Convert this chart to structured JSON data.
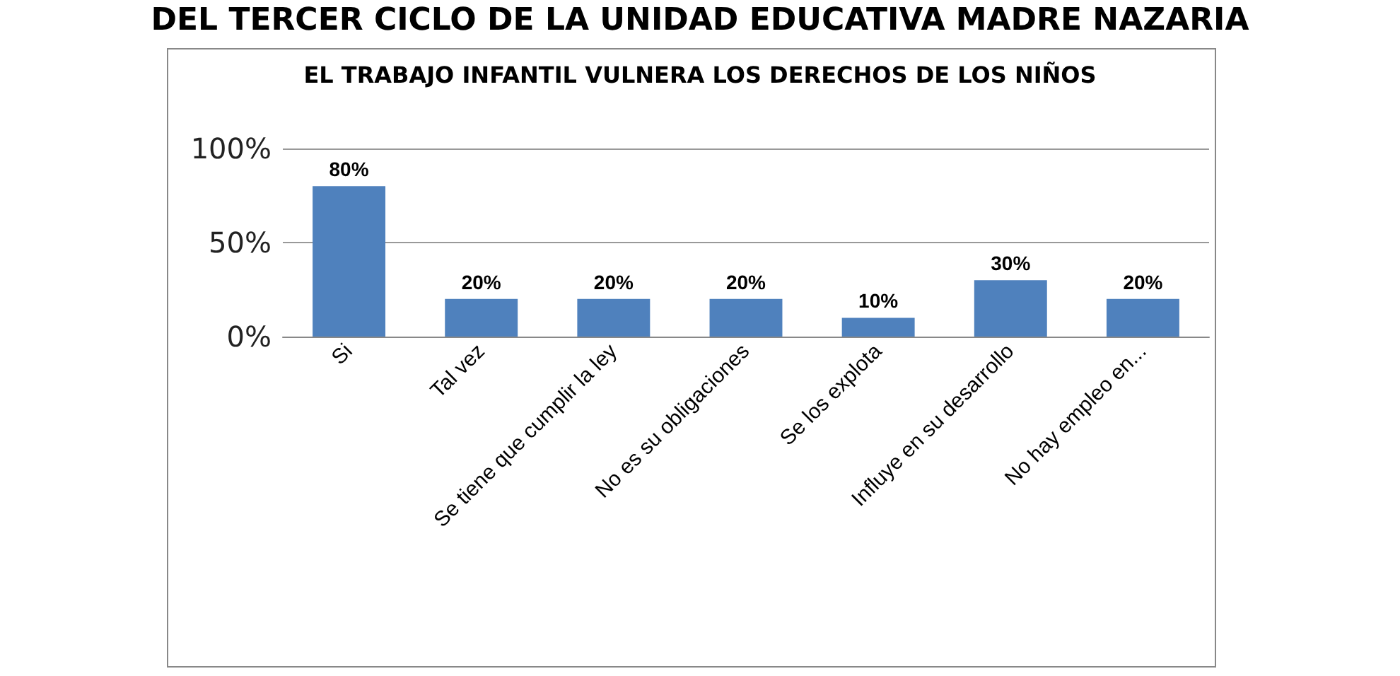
{
  "chart_data": {
    "type": "bar",
    "title": "EL TRABAJO INFANTIL VULNERA LOS DERECHOS DE LOS NIÑOS",
    "annotations": [
      "DEL TERCER CICLO DE LA UNIDAD EDUCATIVA MADRE NAZARIA"
    ],
    "categories": [
      "Si",
      "Tal vez",
      "Se tiene que cumplir la ley",
      "No es su obligaciones",
      "Se los explota",
      "Influye en su desarrollo",
      "No hay empleo en..."
    ],
    "values": [
      80,
      20,
      20,
      20,
      10,
      30,
      20
    ],
    "value_labels": [
      "80%",
      "20%",
      "20%",
      "20%",
      "10%",
      "30%",
      "20%"
    ],
    "color": "#4f81bd",
    "ylim": [
      0,
      100
    ],
    "yticks": [
      {
        "value": 0,
        "label": "0%"
      },
      {
        "value": 50,
        "label": "50%"
      },
      {
        "value": 100,
        "label": "100%"
      }
    ],
    "grid": "y"
  }
}
